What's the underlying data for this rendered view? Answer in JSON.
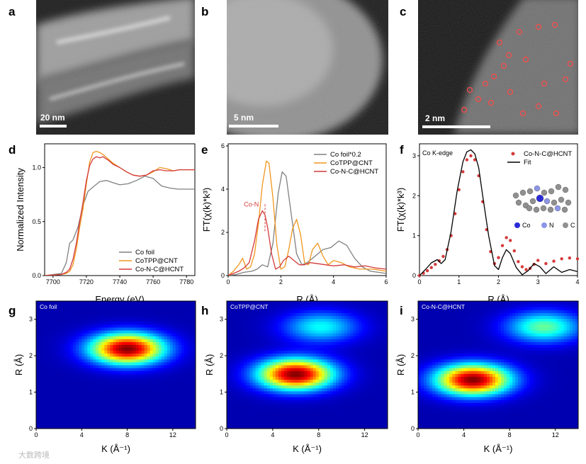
{
  "micrographs": [
    {
      "label": "a",
      "scalebar": "20 nm"
    },
    {
      "label": "b",
      "scalebar": "5 nm"
    },
    {
      "label": "c",
      "scalebar": "2 nm"
    }
  ],
  "watermark": "大数跨境",
  "colors": {
    "co_foil": "#808080",
    "cotpp": "#f0961e",
    "conc": "#d43a3a",
    "fit": "#000000",
    "co_atom": "#2a2ad8",
    "n_atom": "#8c96e6",
    "c_atom": "#909090"
  },
  "chart_data": [
    {
      "panel": "d",
      "type": "line",
      "xlabel": "Energy (eV)",
      "ylabel": "Normalized Intensity",
      "xlim": [
        7695,
        7785
      ],
      "ylim": [
        0,
        1.22
      ],
      "xticks": [
        "7700",
        "7720",
        "7740",
        "7760",
        "7780"
      ],
      "yticks": [
        "0.0",
        "0.5",
        "1.0"
      ],
      "series": [
        {
          "name": "Co foil",
          "x": [
            7695,
            7705,
            7708,
            7710,
            7712,
            7715,
            7718,
            7721,
            7724,
            7728,
            7732,
            7736,
            7740,
            7745,
            7750,
            7755,
            7760,
            7765,
            7770,
            7775,
            7780,
            7785
          ],
          "y": [
            0,
            0.02,
            0.12,
            0.3,
            0.33,
            0.45,
            0.65,
            0.78,
            0.82,
            0.87,
            0.88,
            0.86,
            0.84,
            0.85,
            0.88,
            0.92,
            0.9,
            0.83,
            0.81,
            0.8,
            0.8,
            0.8
          ]
        },
        {
          "name": "CoTPP@CNT",
          "x": [
            7695,
            7705,
            7708,
            7710,
            7712,
            7714,
            7716,
            7718,
            7720,
            7722,
            7724,
            7726,
            7728,
            7730,
            7733,
            7736,
            7740,
            7744,
            7748,
            7752,
            7756,
            7760,
            7764,
            7768,
            7772,
            7776,
            7780,
            7785
          ],
          "y": [
            0,
            0.01,
            0.02,
            0.04,
            0.1,
            0.25,
            0.45,
            0.62,
            0.85,
            1.05,
            1.14,
            1.15,
            1.14,
            1.12,
            1.08,
            1.04,
            1.0,
            0.96,
            0.93,
            0.92,
            0.93,
            0.96,
            1.0,
            0.99,
            0.97,
            0.98,
            0.98,
            0.98
          ]
        },
        {
          "name": "Co-N-C@HCNT",
          "x": [
            7695,
            7705,
            7708,
            7710,
            7712,
            7714,
            7716,
            7718,
            7720,
            7722,
            7724,
            7726,
            7728,
            7730,
            7733,
            7736,
            7740,
            7744,
            7748,
            7752,
            7756,
            7760,
            7764,
            7768,
            7772,
            7776,
            7780,
            7785
          ],
          "y": [
            0,
            0.01,
            0.03,
            0.06,
            0.15,
            0.3,
            0.5,
            0.68,
            0.88,
            1.02,
            1.08,
            1.1,
            1.09,
            1.1,
            1.07,
            1.03,
            1.0,
            0.96,
            0.93,
            0.92,
            0.93,
            0.97,
            0.98,
            0.97,
            0.97,
            0.98,
            0.98,
            0.98
          ]
        }
      ]
    },
    {
      "panel": "e",
      "type": "line",
      "xlabel": "R (Å)",
      "ylabel": "FT(χ(k)*k³)",
      "xlim": [
        0,
        6
      ],
      "ylim": [
        0,
        6.1
      ],
      "xticks": [
        "0",
        "2",
        "4",
        "6"
      ],
      "yticks": [
        "0",
        "2",
        "4",
        "6"
      ],
      "annotation": "Co-N",
      "series": [
        {
          "name": "Co foil*0.2",
          "x": [
            0,
            0.3,
            0.6,
            0.9,
            1.1,
            1.3,
            1.5,
            1.7,
            1.9,
            2.05,
            2.2,
            2.4,
            2.6,
            2.8,
            3.0,
            3.3,
            3.6,
            3.9,
            4.2,
            4.5,
            4.8,
            5.1,
            5.4,
            5.7,
            6.0
          ],
          "y": [
            0,
            0.05,
            0.15,
            0.2,
            0.3,
            0.5,
            0.4,
            1.5,
            3.8,
            4.8,
            4.6,
            2.8,
            1.0,
            0.5,
            0.6,
            0.9,
            1.2,
            1.3,
            1.6,
            1.4,
            0.8,
            0.4,
            0.2,
            0.15,
            0.1
          ]
        },
        {
          "name": "CoTPP@CNT",
          "x": [
            0,
            0.2,
            0.4,
            0.55,
            0.7,
            0.85,
            1.0,
            1.15,
            1.3,
            1.45,
            1.55,
            1.7,
            1.85,
            2.0,
            2.15,
            2.3,
            2.45,
            2.6,
            2.75,
            2.9,
            3.05,
            3.2,
            3.4,
            3.6,
            3.8,
            4.0,
            4.3,
            4.6,
            5.0,
            5.5,
            6.0
          ],
          "y": [
            0,
            0.2,
            0.5,
            0.8,
            0.3,
            0.4,
            1.0,
            2.4,
            4.2,
            5.3,
            5.2,
            3.6,
            1.4,
            0.3,
            0.4,
            1.2,
            2.2,
            2.6,
            1.9,
            0.6,
            0.5,
            1.2,
            1.5,
            0.9,
            0.5,
            0.7,
            0.6,
            0.4,
            0.3,
            0.3,
            0.2
          ]
        },
        {
          "name": "Co-N-C@HCNT",
          "x": [
            0,
            0.2,
            0.4,
            0.6,
            0.8,
            1.0,
            1.15,
            1.3,
            1.4,
            1.5,
            1.65,
            1.8,
            1.95,
            2.1,
            2.3,
            2.5,
            2.7,
            2.9,
            3.1,
            3.4,
            3.7,
            4.0,
            4.4,
            4.8,
            5.2,
            5.6,
            6.0
          ],
          "y": [
            0,
            0.1,
            0.2,
            0.35,
            0.6,
            1.6,
            2.6,
            3.0,
            2.8,
            2.2,
            1.0,
            0.3,
            0.4,
            0.7,
            0.9,
            0.7,
            0.5,
            0.5,
            0.6,
            0.55,
            0.5,
            0.45,
            0.5,
            0.4,
            0.45,
            0.35,
            0.3
          ]
        }
      ]
    },
    {
      "panel": "f",
      "type": "scatter",
      "xlabel": "R (Å)",
      "ylabel": "FT(χ(k)*k³)",
      "xlim": [
        0,
        4
      ],
      "ylim": [
        0,
        3.3
      ],
      "xticks": [
        "0",
        "1",
        "2",
        "3",
        "4"
      ],
      "yticks": [
        "0",
        "1",
        "2",
        "3"
      ],
      "annotation": "Co K-edge",
      "molecule_legend": [
        "Co",
        "N",
        "C"
      ],
      "series": [
        {
          "name": "Co-N-C@HCNT",
          "style": "markers",
          "x": [
            0,
            0.1,
            0.2,
            0.3,
            0.4,
            0.5,
            0.6,
            0.7,
            0.8,
            0.9,
            1.0,
            1.1,
            1.2,
            1.3,
            1.4,
            1.5,
            1.6,
            1.7,
            1.8,
            1.9,
            2.0,
            2.1,
            2.2,
            2.3,
            2.4,
            2.5,
            2.6,
            2.7,
            2.8,
            2.9,
            3.0,
            3.2,
            3.4,
            3.6,
            3.8,
            4.0
          ],
          "y": [
            0,
            0.06,
            0.12,
            0.2,
            0.28,
            0.37,
            0.48,
            0.65,
            1.0,
            1.55,
            2.15,
            2.6,
            2.9,
            3.0,
            2.9,
            2.5,
            1.85,
            1.15,
            0.6,
            0.3,
            0.45,
            0.75,
            0.95,
            0.88,
            0.62,
            0.35,
            0.22,
            0.15,
            0.18,
            0.28,
            0.38,
            0.3,
            0.36,
            0.42,
            0.44,
            0.42
          ]
        },
        {
          "name": "Fit",
          "style": "line",
          "x": [
            0,
            0.15,
            0.3,
            0.45,
            0.55,
            0.65,
            0.8,
            0.95,
            1.1,
            1.2,
            1.3,
            1.4,
            1.5,
            1.6,
            1.75,
            1.9,
            2.0,
            2.1,
            2.2,
            2.3,
            2.45,
            2.6,
            2.75,
            2.9,
            3.05,
            3.2,
            3.4,
            3.6,
            3.8,
            4.0
          ],
          "y": [
            0,
            0.15,
            0.32,
            0.4,
            0.3,
            0.4,
            1.1,
            2.1,
            2.85,
            3.1,
            3.15,
            3.05,
            2.7,
            2.0,
            1.0,
            0.25,
            0.15,
            0.45,
            0.65,
            0.55,
            0.2,
            0.02,
            0.12,
            0.3,
            0.22,
            0.05,
            0.22,
            0.08,
            0.15,
            0.1
          ]
        }
      ]
    },
    {
      "panel": "g",
      "type": "heatmap",
      "title": "Co foil",
      "xlabel": "K (Å⁻¹)",
      "ylabel": "R (Å)",
      "xlim": [
        0,
        14
      ],
      "ylim": [
        0,
        3.5
      ],
      "xticks": [
        "0",
        "4",
        "8",
        "12"
      ],
      "yticks": [
        "0",
        "1",
        "2",
        "3"
      ],
      "peaks": [
        {
          "k": 8.0,
          "r": 2.2,
          "intensity": 1.0
        }
      ]
    },
    {
      "panel": "h",
      "type": "heatmap",
      "title": "CoTPP@CNT",
      "xlabel": "K (Å⁻¹)",
      "ylabel": "R (Å)",
      "xlim": [
        0,
        14
      ],
      "ylim": [
        0,
        3.5
      ],
      "xticks": [
        "0",
        "4",
        "8",
        "12"
      ],
      "yticks": [
        "0",
        "1",
        "2",
        "3"
      ],
      "peaks": [
        {
          "k": 6.0,
          "r": 1.5,
          "intensity": 1.0
        },
        {
          "k": 8.2,
          "r": 2.8,
          "intensity": 0.35
        }
      ]
    },
    {
      "panel": "i",
      "type": "heatmap",
      "title": "Co-N-C@HCNT",
      "xlabel": "K (Å⁻¹)",
      "ylabel": "R (Å)",
      "xlim": [
        0,
        14
      ],
      "ylim": [
        0,
        3.5
      ],
      "xticks": [
        "0",
        "4",
        "8",
        "12"
      ],
      "yticks": [
        "0",
        "1",
        "2",
        "3"
      ],
      "peaks": [
        {
          "k": 4.8,
          "r": 1.35,
          "intensity": 1.0
        },
        {
          "k": 11.0,
          "r": 2.8,
          "intensity": 0.45
        }
      ]
    }
  ]
}
